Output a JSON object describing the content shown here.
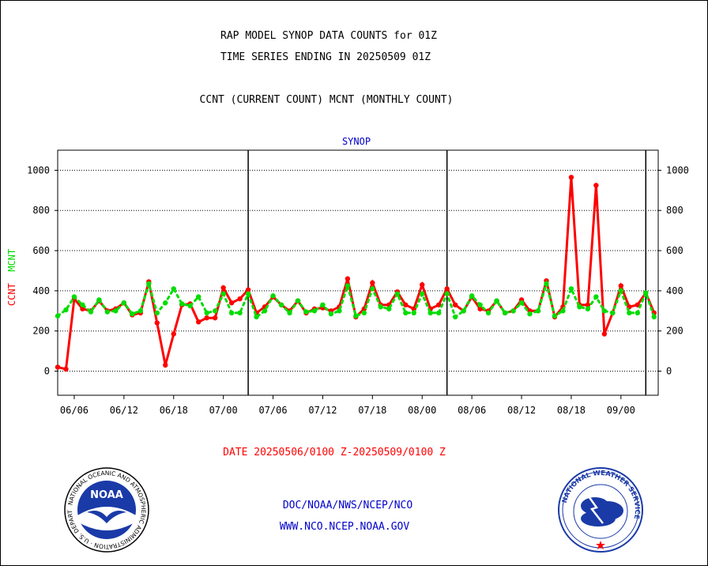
{
  "header": {
    "title_line1": "RAP MODEL SYNOP DATA COUNTS for 01Z",
    "title_line2": "TIME SERIES ENDING IN 20250509 01Z",
    "subtitle": "CCNT (CURRENT COUNT) MCNT (MONTHLY COUNT)"
  },
  "footer": {
    "date_range": "DATE 20250506/0100 Z-20250509/0100 Z",
    "org_line": "DOC/NOAA/NWS/NCEP/NCO",
    "url_line": "WWW.NCO.NCEP.NOAA.GOV"
  },
  "logos": {
    "noaa_text": "NOAA",
    "noaa_ring": "NATIONAL OCEANIC AND ATMOSPHERIC ADMINISTRATION · U.S. DEPARTMENT OF COMMERCE",
    "nws_ring": "NATIONAL WEATHER SERVICE"
  },
  "colors": {
    "ccnt": "#ff0000",
    "mcnt": "#00dd00",
    "panel_label": "#0000cc",
    "footer_red": "#ff0000",
    "footer_blue": "#0000cc"
  },
  "chart_data": {
    "type": "line",
    "panel_title": "SYNOP",
    "ylabel_ccnt": "CCNT",
    "ylabel_mcnt": "MCNT",
    "ylim": [
      -120,
      1100
    ],
    "yticks": [
      0,
      200,
      400,
      600,
      800,
      1000
    ],
    "xticks": [
      "06/06",
      "06/12",
      "06/18",
      "07/00",
      "07/06",
      "07/12",
      "07/18",
      "08/00",
      "08/06",
      "08/12",
      "08/18",
      "09/00"
    ],
    "xlim": [
      0,
      72.5
    ],
    "day_boundaries": [
      23,
      47,
      71
    ],
    "grid": true,
    "series": [
      {
        "name": "CCNT",
        "color": "#ff0000",
        "style": "solid",
        "x": [
          0,
          1,
          2,
          3,
          4,
          5,
          6,
          7,
          8,
          9,
          10,
          11,
          12,
          13,
          14,
          15,
          16,
          17,
          18,
          19,
          20,
          21,
          22,
          23,
          24,
          25,
          26,
          27,
          28,
          29,
          30,
          31,
          32,
          33,
          34,
          35,
          36,
          37,
          38,
          39,
          40,
          41,
          42,
          43,
          44,
          45,
          46,
          47,
          48,
          49,
          50,
          51,
          52,
          53,
          54,
          55,
          56,
          57,
          58,
          59,
          60,
          61,
          62,
          63,
          64,
          65,
          66,
          67,
          68,
          69,
          70,
          71,
          72
        ],
        "values": [
          20,
          10,
          360,
          310,
          300,
          350,
          300,
          310,
          340,
          280,
          290,
          445,
          240,
          30,
          185,
          330,
          335,
          245,
          265,
          265,
          415,
          340,
          360,
          405,
          290,
          320,
          370,
          330,
          300,
          350,
          290,
          310,
          315,
          300,
          320,
          460,
          270,
          310,
          440,
          330,
          330,
          395,
          330,
          310,
          430,
          310,
          330,
          410,
          330,
          300,
          370,
          310,
          300,
          350,
          290,
          300,
          355,
          300,
          300,
          450,
          270,
          320,
          965,
          330,
          330,
          925,
          185,
          290,
          425,
          320,
          330,
          390,
          290
        ]
      },
      {
        "name": "MCNT",
        "color": "#00dd00",
        "style": "dotted",
        "x": [
          0,
          1,
          2,
          3,
          4,
          5,
          6,
          7,
          8,
          9,
          10,
          11,
          12,
          13,
          14,
          15,
          16,
          17,
          18,
          19,
          20,
          21,
          22,
          23,
          24,
          25,
          26,
          27,
          28,
          29,
          30,
          31,
          32,
          33,
          34,
          35,
          36,
          37,
          38,
          39,
          40,
          41,
          42,
          43,
          44,
          45,
          46,
          47,
          48,
          49,
          50,
          51,
          52,
          53,
          54,
          55,
          56,
          57,
          58,
          59,
          60,
          61,
          62,
          63,
          64,
          65,
          66,
          67,
          68,
          69,
          70,
          71,
          72
        ],
        "values": [
          275,
          305,
          370,
          330,
          295,
          355,
          295,
          300,
          340,
          285,
          300,
          435,
          290,
          340,
          410,
          335,
          325,
          370,
          290,
          300,
          385,
          290,
          290,
          385,
          270,
          300,
          375,
          330,
          290,
          350,
          295,
          300,
          330,
          285,
          300,
          425,
          275,
          290,
          410,
          320,
          310,
          385,
          290,
          290,
          385,
          290,
          290,
          385,
          270,
          300,
          375,
          330,
          290,
          350,
          290,
          300,
          340,
          285,
          300,
          435,
          275,
          300,
          410,
          320,
          310,
          370,
          300,
          290,
          400,
          290,
          290,
          390,
          270
        ]
      }
    ]
  }
}
